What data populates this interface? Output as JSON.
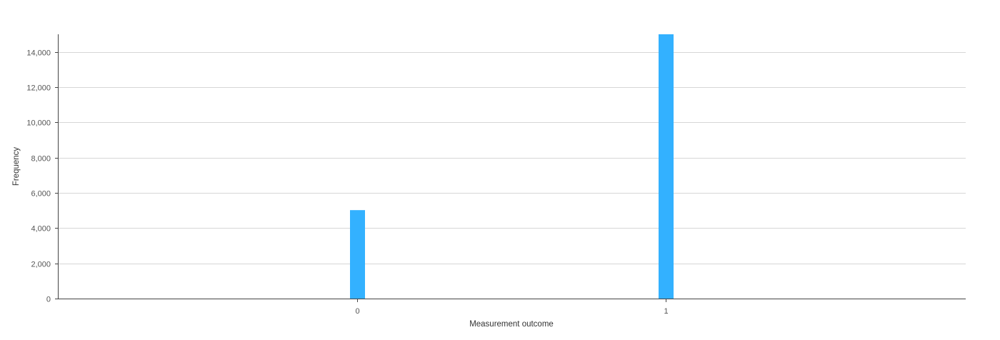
{
  "chart_data": {
    "type": "bar",
    "categories": [
      "0",
      "1"
    ],
    "values": [
      5020,
      15000
    ],
    "xlabel": "Measurement outcome",
    "ylabel": "Frequency",
    "ylim": [
      0,
      15000
    ],
    "yticks": [
      0,
      2000,
      4000,
      6000,
      8000,
      10000,
      12000,
      14000
    ],
    "ytick_labels": [
      "0",
      "2,000",
      "4,000",
      "6,000",
      "8,000",
      "10,000",
      "12,000",
      "14,000"
    ],
    "grid": true,
    "bar_color": "#33b1ff"
  }
}
